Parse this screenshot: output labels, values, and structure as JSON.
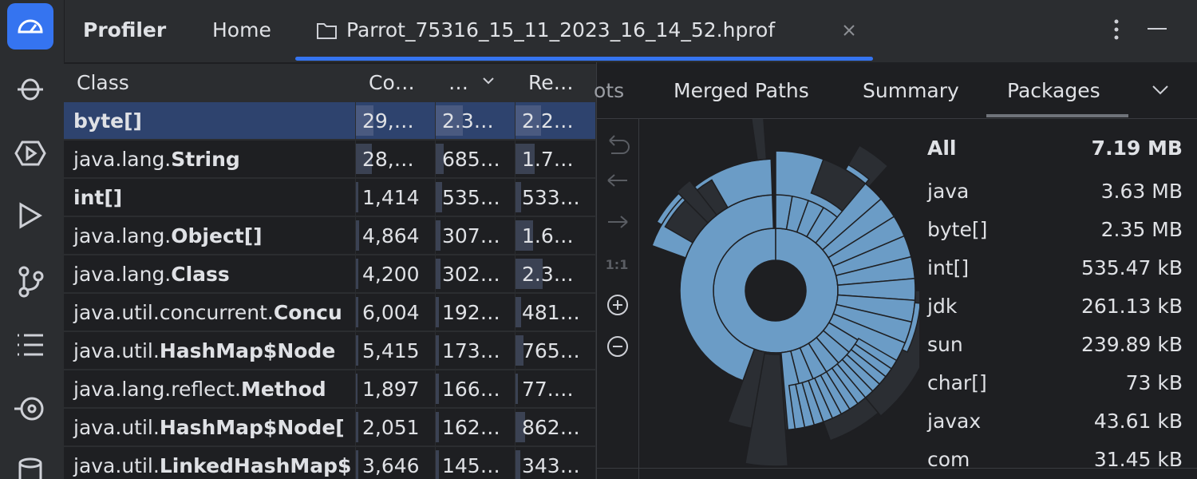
{
  "header": {
    "title": "Profiler",
    "tabs": [
      "Home",
      "Parrot_75316_15_11_2023_16_14_52.hprof"
    ]
  },
  "table": {
    "columns": [
      "Class",
      "Co…",
      "…",
      "Re…"
    ],
    "rows": [
      {
        "name": "byte[]",
        "cells": [
          "29,…",
          "2.3…",
          "2.2…"
        ]
      },
      {
        "prefix": "java.lang.",
        "name": "String",
        "cells": [
          "28,…",
          "685…",
          "1.7…"
        ]
      },
      {
        "name": "int[]",
        "cells": [
          "1,414",
          "535…",
          "533…"
        ]
      },
      {
        "prefix": "java.lang.",
        "name": "Object[]",
        "cells": [
          "4,864",
          "307…",
          "1.6…"
        ]
      },
      {
        "prefix": "java.lang.",
        "name": "Class",
        "cells": [
          "4,200",
          "302…",
          "2.3…"
        ]
      },
      {
        "prefix": "java.util.concurrent.",
        "name": "Concu",
        "cells": [
          "6,004",
          "192…",
          "481…"
        ]
      },
      {
        "prefix": "java.util.",
        "name": "HashMap$Node",
        "cells": [
          "5,415",
          "173…",
          "765…"
        ]
      },
      {
        "prefix": "java.lang.reflect.",
        "name": "Method",
        "cells": [
          "1,897",
          "166…",
          "77.…"
        ]
      },
      {
        "prefix": "java.util.",
        "name": "HashMap$Node[",
        "cells": [
          "2,051",
          "162…",
          "862…"
        ]
      },
      {
        "prefix": "java.util.",
        "name": "LinkedHashMap$",
        "cells": [
          "3,646",
          "145…",
          "343…"
        ]
      }
    ]
  },
  "right_tabs": [
    "ots",
    "Merged Paths",
    "Summary",
    "Packages"
  ],
  "packages": [
    [
      "All",
      "7.19 MB"
    ],
    [
      "java",
      "3.63 MB"
    ],
    [
      "byte[]",
      "2.35 MB"
    ],
    [
      "int[]",
      "535.47 kB"
    ],
    [
      "jdk",
      "261.13 kB"
    ],
    [
      "sun",
      "239.89 kB"
    ],
    [
      "char[]",
      "73 kB"
    ],
    [
      "javax",
      "43.61 kB"
    ],
    [
      "com",
      "31.45 kB"
    ]
  ]
}
